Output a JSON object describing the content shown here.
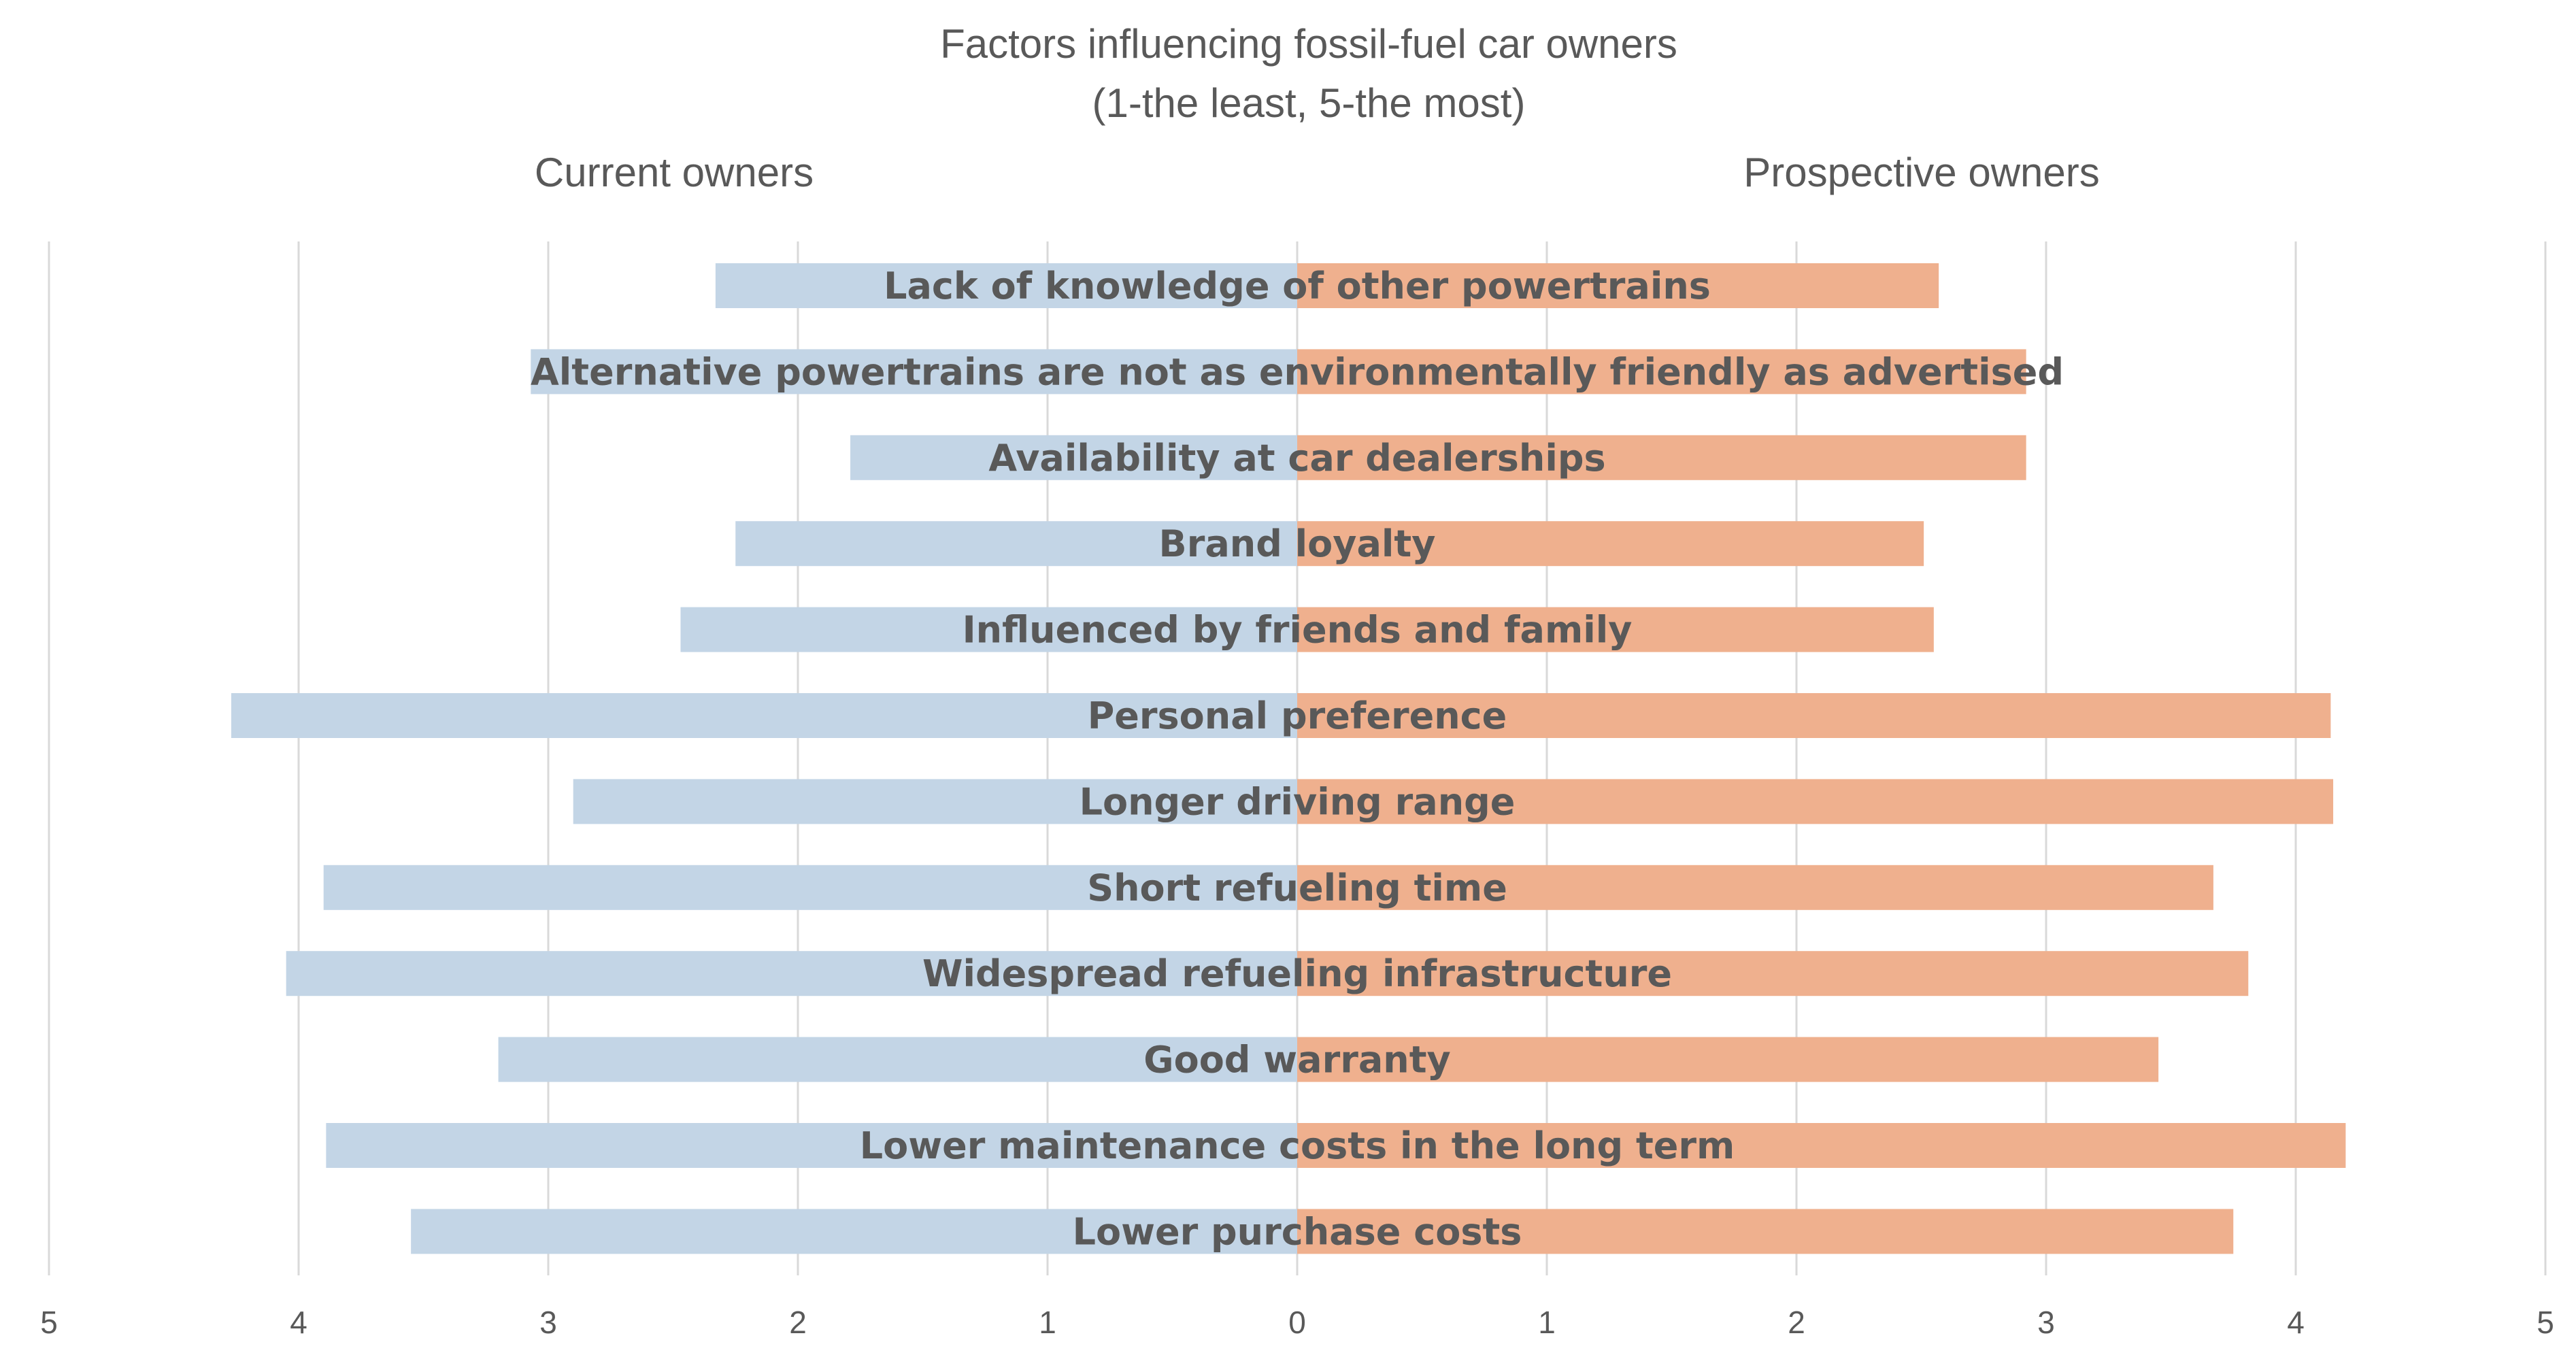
{
  "chart_data": {
    "type": "bar",
    "title": "Factors influencing fossil-fuel car owners",
    "subtitle": "(1-the least, 5-the most)",
    "xlabel": "",
    "ylabel": "",
    "xlim": [
      -5,
      5
    ],
    "grid": true,
    "categories": [
      "Lack of knowledge of other powertrains",
      "Alternative powertrains are not as environmentally friendly as advertised",
      "Availability at car dealerships",
      "Brand loyalty",
      "Influenced by friends and family",
      "Personal preference",
      "Longer driving range",
      "Short refueling time",
      "Widespread refueling infrastructure",
      "Good warranty",
      "Lower maintenance costs in the long term",
      "Lower purchase costs"
    ],
    "series": [
      {
        "name": "Current owners",
        "color": "#c3d5e6",
        "side": "left",
        "values": [
          2.33,
          3.07,
          1.79,
          2.25,
          2.47,
          4.27,
          2.9,
          3.9,
          4.05,
          3.2,
          3.89,
          3.55
        ]
      },
      {
        "name": "Prospective owners",
        "color": "#efb08e",
        "side": "right",
        "values": [
          2.57,
          2.92,
          2.92,
          2.51,
          2.55,
          4.14,
          4.15,
          3.67,
          3.81,
          3.45,
          4.2,
          3.75
        ]
      }
    ],
    "ticks_left": [
      "5",
      "4",
      "3",
      "2",
      "1",
      "0"
    ],
    "ticks_right": [
      "1",
      "2",
      "3",
      "4",
      "5"
    ]
  }
}
